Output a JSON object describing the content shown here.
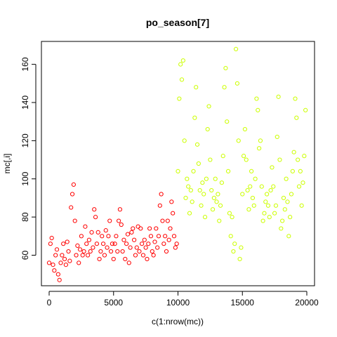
{
  "chart_data": {
    "type": "scatter",
    "title": "po_season[7]",
    "xlabel": "c(1:nrow(mc))",
    "ylabel": "mc[,i]",
    "xlim": [
      -600,
      20600
    ],
    "ylim": [
      44,
      172
    ],
    "x_ticks": [
      "0",
      "5000",
      "10000",
      "15000",
      "20000"
    ],
    "y_ticks": [
      "60",
      "80",
      "100",
      "120",
      "140",
      "160"
    ],
    "grid": false,
    "legend": "none",
    "marker": "open-circle",
    "series": [
      {
        "color": "#ff0000",
        "points": [
          [
            0,
            56
          ],
          [
            100,
            66
          ],
          [
            200,
            69
          ],
          [
            300,
            55
          ],
          [
            400,
            52
          ],
          [
            500,
            60
          ],
          [
            600,
            63
          ],
          [
            700,
            50
          ],
          [
            800,
            47
          ],
          [
            900,
            56
          ],
          [
            1000,
            60
          ],
          [
            1100,
            66
          ],
          [
            1200,
            58
          ],
          [
            1300,
            55
          ],
          [
            1400,
            67
          ],
          [
            1500,
            62
          ],
          [
            1600,
            57
          ],
          [
            1700,
            85
          ],
          [
            1800,
            92
          ],
          [
            1900,
            97
          ],
          [
            2000,
            78
          ],
          [
            2100,
            60
          ],
          [
            2200,
            65
          ],
          [
            2300,
            56
          ],
          [
            2400,
            63
          ],
          [
            2500,
            70
          ],
          [
            2600,
            60
          ],
          [
            2700,
            62
          ],
          [
            2800,
            75
          ],
          [
            2900,
            66
          ],
          [
            3000,
            60
          ],
          [
            3100,
            68
          ],
          [
            3200,
            62
          ],
          [
            3300,
            72
          ],
          [
            3400,
            64
          ],
          [
            3500,
            84
          ],
          [
            3600,
            80
          ],
          [
            3700,
            66
          ],
          [
            3800,
            72
          ],
          [
            3900,
            58
          ],
          [
            4000,
            62
          ],
          [
            4100,
            70
          ],
          [
            4200,
            66
          ],
          [
            4300,
            60
          ],
          [
            4400,
            73
          ],
          [
            4500,
            64
          ],
          [
            4600,
            70
          ],
          [
            4700,
            78
          ],
          [
            4800,
            62
          ],
          [
            4900,
            66
          ],
          [
            5000,
            58
          ],
          [
            5100,
            66
          ],
          [
            5200,
            70
          ],
          [
            5300,
            62
          ],
          [
            5400,
            78
          ],
          [
            5500,
            84
          ],
          [
            5600,
            76
          ],
          [
            5700,
            62
          ],
          [
            5800,
            68
          ],
          [
            5900,
            58
          ],
          [
            6000,
            66
          ],
          [
            6100,
            71
          ],
          [
            6200,
            56
          ],
          [
            6300,
            64
          ],
          [
            6400,
            72
          ],
          [
            6500,
            74
          ],
          [
            6600,
            68
          ],
          [
            6700,
            60
          ],
          [
            6800,
            64
          ],
          [
            6900,
            75
          ],
          [
            7000,
            62
          ],
          [
            7100,
            74
          ],
          [
            7200,
            66
          ],
          [
            7300,
            60
          ],
          [
            7400,
            68
          ],
          [
            7500,
            64
          ],
          [
            7600,
            58
          ],
          [
            7700,
            66
          ],
          [
            7800,
            74
          ],
          [
            7900,
            70
          ],
          [
            8000,
            62
          ],
          [
            8100,
            60
          ],
          [
            8200,
            67
          ],
          [
            8300,
            74
          ],
          [
            8400,
            64
          ],
          [
            8500,
            70
          ],
          [
            8600,
            86
          ],
          [
            8700,
            92
          ],
          [
            8800,
            78
          ],
          [
            8900,
            66
          ],
          [
            9000,
            70
          ],
          [
            9100,
            62
          ],
          [
            9200,
            78
          ],
          [
            9300,
            68
          ],
          [
            9400,
            74
          ],
          [
            9500,
            88
          ],
          [
            9600,
            82
          ],
          [
            9700,
            70
          ],
          [
            9800,
            64
          ],
          [
            9900,
            66
          ]
        ]
      },
      {
        "color": "#ccff00",
        "points": [
          [
            10000,
            104
          ],
          [
            10100,
            142
          ],
          [
            10200,
            160
          ],
          [
            10300,
            152
          ],
          [
            10400,
            162
          ],
          [
            10500,
            120
          ],
          [
            10600,
            90
          ],
          [
            10700,
            100
          ],
          [
            10800,
            96
          ],
          [
            10900,
            82
          ],
          [
            11000,
            94
          ],
          [
            11100,
            88
          ],
          [
            11200,
            104
          ],
          [
            11300,
            132
          ],
          [
            11400,
            148
          ],
          [
            11500,
            118
          ],
          [
            11600,
            108
          ],
          [
            11700,
            94
          ],
          [
            11800,
            86
          ],
          [
            11900,
            98
          ],
          [
            12000,
            92
          ],
          [
            12100,
            80
          ],
          [
            12200,
            100
          ],
          [
            12300,
            126
          ],
          [
            12400,
            138
          ],
          [
            12500,
            110
          ],
          [
            12600,
            94
          ],
          [
            12700,
            84
          ],
          [
            12800,
            90
          ],
          [
            12900,
            100
          ],
          [
            13000,
            88
          ],
          [
            13100,
            92
          ],
          [
            13200,
            78
          ],
          [
            13300,
            86
          ],
          [
            13400,
            98
          ],
          [
            13500,
            112
          ],
          [
            13600,
            148
          ],
          [
            13700,
            158
          ],
          [
            13800,
            130
          ],
          [
            13900,
            104
          ],
          [
            14000,
            82
          ],
          [
            14100,
            70
          ],
          [
            14200,
            80
          ],
          [
            14300,
            62
          ],
          [
            14400,
            66
          ],
          [
            14500,
            168
          ],
          [
            14600,
            150
          ],
          [
            14700,
            120
          ],
          [
            14800,
            58
          ],
          [
            14900,
            64
          ],
          [
            15000,
            92
          ],
          [
            15100,
            112
          ],
          [
            15200,
            126
          ],
          [
            15300,
            110
          ],
          [
            15400,
            94
          ],
          [
            15500,
            84
          ],
          [
            15600,
            96
          ],
          [
            15700,
            104
          ],
          [
            15800,
            90
          ],
          [
            15900,
            86
          ],
          [
            16000,
            100
          ],
          [
            16100,
            142
          ],
          [
            16200,
            136
          ],
          [
            16300,
            116
          ],
          [
            16400,
            120
          ],
          [
            16500,
            96
          ],
          [
            16600,
            78
          ],
          [
            16700,
            82
          ],
          [
            16800,
            88
          ],
          [
            16900,
            92
          ],
          [
            17000,
            86
          ],
          [
            17100,
            80
          ],
          [
            17200,
            94
          ],
          [
            17300,
            106
          ],
          [
            17400,
            96
          ],
          [
            17500,
            82
          ],
          [
            17600,
            86
          ],
          [
            17700,
            122
          ],
          [
            17800,
            143
          ],
          [
            17900,
            110
          ],
          [
            18000,
            74
          ],
          [
            18100,
            78
          ],
          [
            18200,
            90
          ],
          [
            18300,
            84
          ],
          [
            18400,
            100
          ],
          [
            18500,
            88
          ],
          [
            18600,
            70
          ],
          [
            18700,
            80
          ],
          [
            18800,
            92
          ],
          [
            18900,
            104
          ],
          [
            19000,
            114
          ],
          [
            19100,
            142
          ],
          [
            19200,
            132
          ],
          [
            19300,
            110
          ],
          [
            19400,
            96
          ],
          [
            19500,
            104
          ],
          [
            19600,
            86
          ],
          [
            19700,
            98
          ],
          [
            19800,
            112
          ],
          [
            19900,
            136
          ]
        ]
      }
    ]
  }
}
